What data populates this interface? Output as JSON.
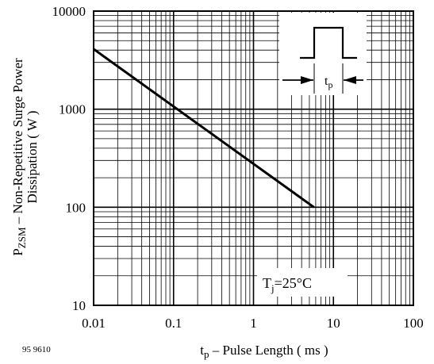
{
  "figure_code": "95 9610",
  "chart_data": {
    "type": "line",
    "scale": {
      "x": "log",
      "y": "log"
    },
    "xlim": [
      0.01,
      100
    ],
    "ylim": [
      10,
      10000
    ],
    "grid": true,
    "x_ticks": [
      {
        "value": 0.01,
        "label": "0.01"
      },
      {
        "value": 0.1,
        "label": "0.1"
      },
      {
        "value": 1,
        "label": "1"
      },
      {
        "value": 10,
        "label": "10"
      },
      {
        "value": 100,
        "label": "100"
      }
    ],
    "y_ticks": [
      {
        "value": 10,
        "label": "10"
      },
      {
        "value": 100,
        "label": "100"
      },
      {
        "value": 1000,
        "label": "1000"
      },
      {
        "value": 10000,
        "label": "10000"
      }
    ],
    "xlabel": {
      "main": "t",
      "sub": "p",
      "rest": " – Pulse Length ( ms )"
    },
    "ylabel": {
      "line1_main": "P",
      "line1_sub": "ZSM",
      "line1_rest": " – Non-Repetitive Surge Power",
      "line2": "Dissipation ( W )"
    },
    "series": [
      {
        "x": [
          0.01,
          5.7
        ],
        "y": [
          4100,
          100
        ]
      }
    ],
    "annotation": {
      "main": "T",
      "sub": "j",
      "rest": "=25°C"
    },
    "inset_label": {
      "main": "t",
      "sub": "p"
    }
  }
}
